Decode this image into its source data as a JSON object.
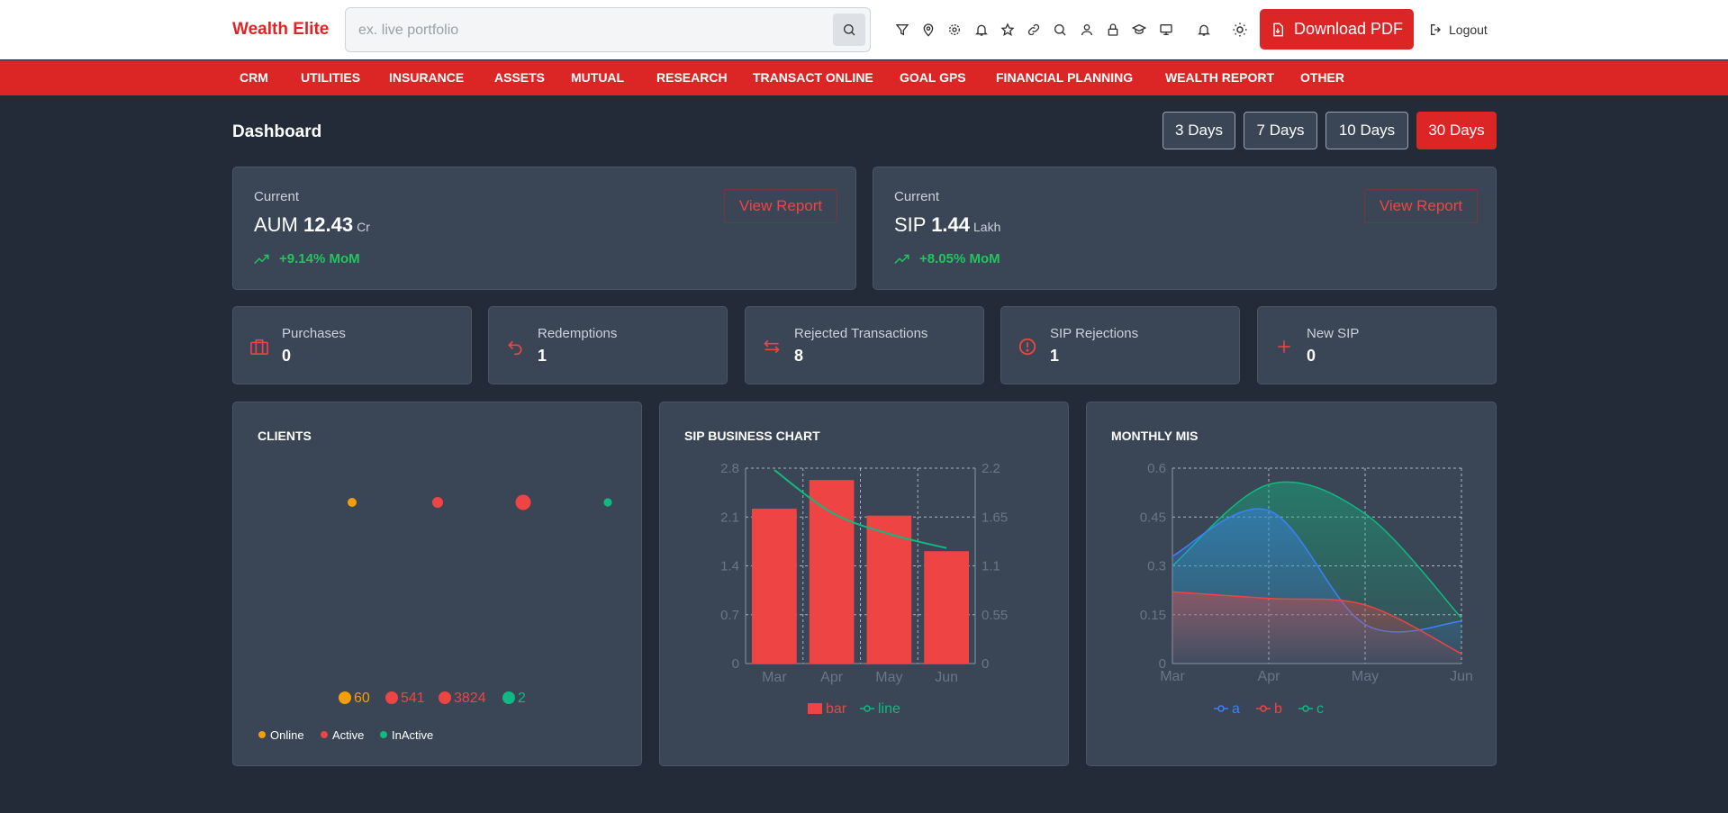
{
  "app": {
    "logo": "Wealth Elite"
  },
  "search": {
    "placeholder": "ex. live portfolio"
  },
  "toolbar_icons": [
    "filter-icon",
    "map-pin-icon",
    "gear-icon",
    "bell-icon",
    "star-icon",
    "link-icon",
    "search-icon",
    "user-icon",
    "lock-icon",
    "graduation-cap-icon",
    "monitor-icon"
  ],
  "header": {
    "download_label": "Download PDF",
    "logout_label": "Logout"
  },
  "nav": [
    "CRM",
    "UTILITIES",
    "INSURANCE",
    "ASSETS",
    "MUTUAL",
    "RESEARCH",
    "TRANSACT ONLINE",
    "GOAL GPS",
    "FINANCIAL PLANNING",
    "WEALTH REPORT",
    "OTHER"
  ],
  "dashboard": {
    "title": "Dashboard",
    "ranges": [
      "3 Days",
      "7 Days",
      "10 Days",
      "30 Days"
    ],
    "active_range": "30 Days"
  },
  "summary": [
    {
      "label": "Current",
      "name": "AUM",
      "value": "12.43",
      "unit": "Cr",
      "trend": "+9.14% MoM",
      "action": "View Report"
    },
    {
      "label": "Current",
      "name": "SIP",
      "value": "1.44",
      "unit": "Lakh",
      "trend": "+8.05% MoM",
      "action": "View Report"
    }
  ],
  "stats": [
    {
      "label": "Purchases",
      "value": "0",
      "icon": "briefcase-icon"
    },
    {
      "label": "Redemptions",
      "value": "1",
      "icon": "undo-arrow-icon"
    },
    {
      "label": "Rejected Transactions",
      "value": "8",
      "icon": "swap-arrows-icon"
    },
    {
      "label": "SIP Rejections",
      "value": "1",
      "icon": "alert-circle-icon"
    },
    {
      "label": "New SIP",
      "value": "0",
      "icon": "plus-icon"
    }
  ],
  "colors": {
    "accent": "#dc2626",
    "orange": "#f59e0b",
    "red": "#ef4444",
    "green": "#10b981",
    "blue": "#3b82f6",
    "panel": "#3a4556",
    "bg": "#232b38"
  },
  "chart_data": [
    {
      "type": "scatter",
      "title": "CLIENTS",
      "series": [
        {
          "value": 60,
          "color": "#f59e0b"
        },
        {
          "value": 541,
          "color": "#ef4444"
        },
        {
          "value": 3824,
          "color": "#ef4444"
        },
        {
          "value": 2,
          "color": "#10b981"
        }
      ],
      "legend": [
        {
          "name": "Online",
          "color": "#f59e0b"
        },
        {
          "name": "Active",
          "color": "#ef4444"
        },
        {
          "name": "InActive",
          "color": "#10b981"
        }
      ]
    },
    {
      "type": "bar",
      "title": "SIP BUSINESS CHART",
      "categories": [
        "Mar",
        "Apr",
        "May",
        "Jun"
      ],
      "series": [
        {
          "name": "bar",
          "type": "bar",
          "axis": "left",
          "values": [
            2.22,
            2.63,
            2.12,
            1.61
          ],
          "color": "#ef4444"
        },
        {
          "name": "line",
          "type": "line",
          "axis": "right",
          "values": [
            2.18,
            1.7,
            1.46,
            1.3
          ],
          "color": "#10b981"
        }
      ],
      "yticks_left": [
        "0",
        "0.7",
        "1.4",
        "2.1",
        "2.8"
      ],
      "yticks_right": [
        "0",
        "0.55",
        "1.1",
        "1.65",
        "2.2"
      ],
      "ylim_left": [
        0,
        2.8
      ],
      "ylim_right": [
        0,
        2.2
      ],
      "grid": true,
      "legend_position": "bottom"
    },
    {
      "type": "area",
      "title": "MONTHLY MIS",
      "categories": [
        "Mar",
        "Apr",
        "May",
        "Jun"
      ],
      "yticks": [
        "0",
        "0.15",
        "0.3",
        "0.45",
        "0.6"
      ],
      "ylim": [
        0,
        0.6
      ],
      "series": [
        {
          "name": "a",
          "color": "#3b82f6",
          "values": [
            0.33,
            0.47,
            0.12,
            0.13
          ]
        },
        {
          "name": "b",
          "color": "#ef4444",
          "values": [
            0.22,
            0.2,
            0.18,
            0.03
          ]
        },
        {
          "name": "c",
          "color": "#10b981",
          "values": [
            0.3,
            0.55,
            0.46,
            0.14
          ]
        }
      ],
      "grid": true,
      "legend_position": "bottom"
    }
  ]
}
